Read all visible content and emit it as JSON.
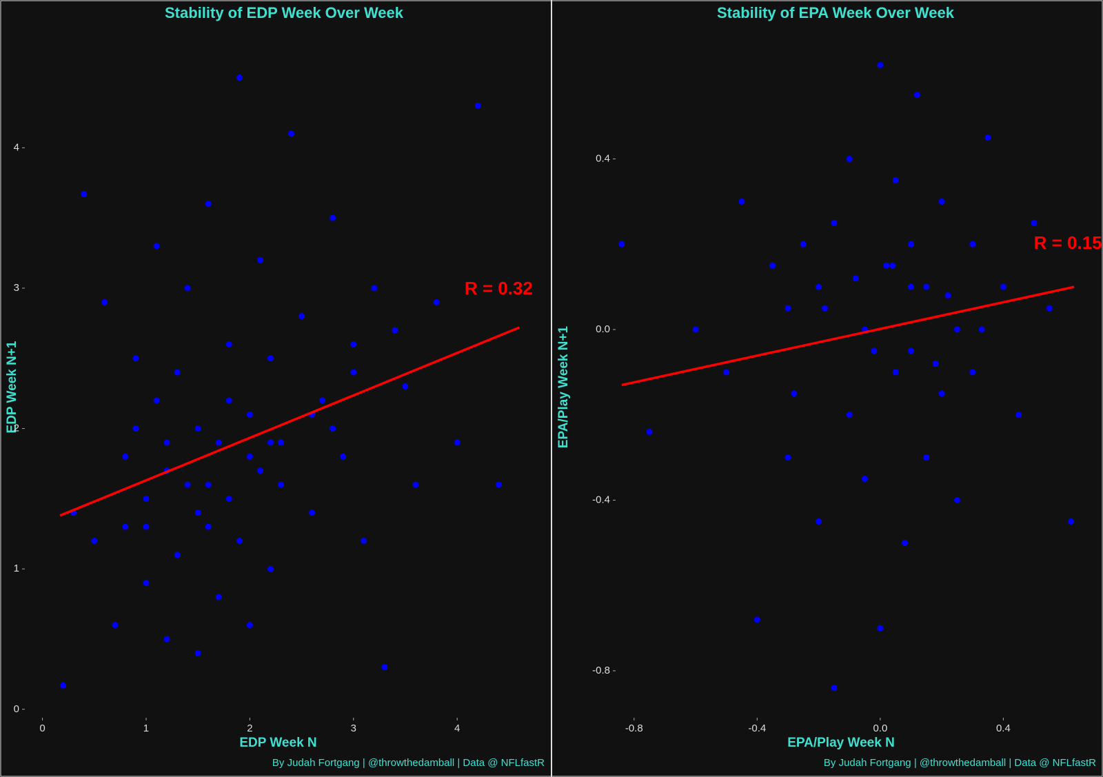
{
  "chart_data": [
    {
      "type": "scatter",
      "title": "Stability of EDP Week Over Week",
      "x_label": "EDP Week N",
      "y_label": "EDP Week N+1",
      "caption": "By Judah Fortgang | @throwthedamball | Data @ NFLfastR",
      "xlim": [
        -0.17,
        4.85
      ],
      "ylim": [
        -0.06,
        4.65
      ],
      "xticks": [
        0,
        1,
        2,
        3,
        4
      ],
      "yticks": [
        0,
        1,
        2,
        3,
        4
      ],
      "series": [
        {
          "color": "#0000ff",
          "x": [
            0.2,
            0.4,
            0.5,
            0.6,
            0.7,
            0.8,
            0.8,
            0.9,
            1.0,
            1.0,
            1.1,
            1.1,
            1.2,
            1.2,
            1.3,
            1.3,
            1.4,
            1.4,
            1.5,
            1.5,
            1.6,
            1.6,
            1.7,
            1.7,
            1.8,
            1.8,
            1.9,
            1.9,
            2.0,
            2.0,
            2.1,
            2.1,
            2.2,
            2.2,
            2.3,
            2.4,
            2.5,
            2.6,
            2.7,
            2.8,
            2.9,
            3.0,
            3.1,
            3.2,
            3.3,
            3.5,
            3.6,
            3.8,
            4.0,
            4.2,
            4.4,
            0.3,
            1.2,
            1.8,
            2.3,
            0.9,
            1.5,
            2.0,
            2.6,
            3.0,
            1.0,
            1.6,
            2.2,
            2.8,
            3.4
          ],
          "values": [
            0.17,
            3.67,
            1.2,
            2.9,
            0.6,
            1.8,
            1.3,
            2.5,
            0.9,
            1.5,
            2.2,
            3.3,
            0.5,
            1.7,
            2.4,
            1.1,
            3.0,
            1.6,
            0.4,
            2.0,
            1.3,
            3.6,
            1.9,
            0.8,
            2.6,
            1.5,
            4.5,
            1.2,
            2.1,
            0.6,
            1.7,
            3.2,
            2.5,
            1.0,
            1.9,
            4.1,
            2.8,
            1.4,
            2.2,
            3.5,
            1.8,
            2.6,
            1.2,
            3.0,
            0.3,
            2.3,
            1.6,
            2.9,
            1.9,
            4.3,
            1.6,
            1.4,
            1.9,
            2.2,
            1.6,
            2.0,
            1.4,
            1.8,
            2.1,
            2.4,
            1.3,
            1.6,
            1.9,
            2.0,
            2.7
          ]
        }
      ],
      "fit_line": {
        "color": "#ff0000",
        "x": [
          0.17,
          4.6
        ],
        "values": [
          1.38,
          2.72
        ]
      },
      "annotation": {
        "text": "R = 0.32",
        "x": 4.4,
        "y": 2.99,
        "color": "#ff0000"
      }
    },
    {
      "type": "scatter",
      "title": "Stability of EPA Week Over Week",
      "x_label": "EPA/Play Week N",
      "y_label": "EPA/Play Week N+1",
      "caption": "By Judah Fortgang | @throwthedamball | Data @ NFLfastR",
      "xlim": [
        -0.86,
        0.65
      ],
      "ylim": [
        -0.91,
        0.64
      ],
      "xticks": [
        -0.8,
        -0.4,
        {
          "value": 0,
          "label": "0.0"
        },
        0.4
      ],
      "yticks": [
        -0.8,
        -0.4,
        {
          "value": 0,
          "label": "0.0"
        },
        0.4
      ],
      "series": [
        {
          "color": "#0000ff",
          "x": [
            -0.84,
            -0.75,
            -0.6,
            -0.5,
            -0.45,
            -0.4,
            -0.35,
            -0.3,
            -0.3,
            -0.25,
            -0.2,
            -0.2,
            -0.15,
            -0.15,
            -0.1,
            -0.1,
            -0.05,
            -0.05,
            0.0,
            0.0,
            0.02,
            0.05,
            0.05,
            0.08,
            0.1,
            0.1,
            0.12,
            0.15,
            0.15,
            0.2,
            0.2,
            0.25,
            0.25,
            0.3,
            0.3,
            0.35,
            0.4,
            0.45,
            0.5,
            0.55,
            0.62,
            -0.18,
            0.1,
            -0.02,
            0.04,
            0.18,
            -0.08,
            0.22,
            -0.28,
            0.33
          ],
          "values": [
            0.2,
            -0.24,
            0.0,
            -0.1,
            0.3,
            -0.68,
            0.15,
            -0.3,
            0.05,
            0.2,
            -0.45,
            0.1,
            -0.84,
            0.25,
            -0.2,
            0.4,
            0.0,
            -0.35,
            0.62,
            -0.7,
            0.15,
            -0.1,
            0.35,
            -0.5,
            0.2,
            -0.05,
            0.55,
            0.1,
            -0.3,
            0.3,
            -0.15,
            0.0,
            -0.4,
            0.2,
            -0.1,
            0.45,
            0.1,
            -0.2,
            0.25,
            0.05,
            -0.45,
            0.05,
            0.1,
            -0.05,
            0.15,
            -0.08,
            0.12,
            0.08,
            -0.15,
            0.0
          ]
        }
      ],
      "fit_line": {
        "color": "#ff0000",
        "x": [
          -0.84,
          0.63
        ],
        "values": [
          -0.13,
          0.1
        ]
      },
      "annotation": {
        "text": "R = 0.15",
        "x": 0.61,
        "y": 0.2,
        "color": "#ff0000"
      }
    }
  ]
}
